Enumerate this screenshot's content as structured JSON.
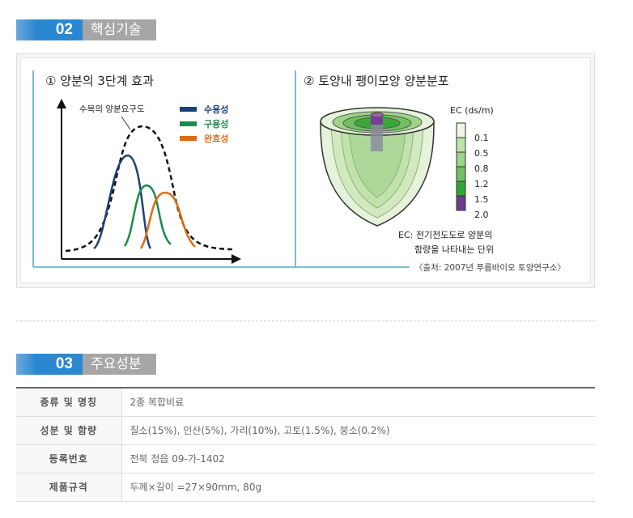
{
  "section2": {
    "number": "02",
    "title": "핵심기술"
  },
  "panel1": {
    "title": "① 양분의 3단계 효과",
    "demand_label": "수목의 양분요구도",
    "legend": [
      {
        "label": "수용성",
        "color": "#1d3f7a"
      },
      {
        "label": "구용성",
        "color": "#1e8a4a"
      },
      {
        "label": "완효성",
        "color": "#e06a10"
      }
    ]
  },
  "panel2": {
    "title": "② 토양내 팽이모양 양분분포",
    "scale_title": "EC (ds/m)",
    "scale_values": [
      "0.1",
      "0.5",
      "0.8",
      "1.2",
      "1.5",
      "2.0"
    ],
    "note_line1": "EC: 전기전도도로 양분의",
    "note_line2": "함량을 나타내는 단위"
  },
  "source": "〈출처: 2007년 푸름바이오 토양연구소〉",
  "section3": {
    "number": "03",
    "title": "주요성분"
  },
  "table": [
    {
      "label": "종류 및 명칭",
      "value": "2종 복합비료"
    },
    {
      "label": "성분 및 함량",
      "value": "질소(15%), 인산(5%), 가리(10%), 고토(1.5%), 붕소(0.2%)"
    },
    {
      "label": "등록번호",
      "value": "전북 정읍 09-가-1402"
    },
    {
      "label": "제품규격",
      "value": "두께×길이 =27×90mm, 80g"
    }
  ]
}
